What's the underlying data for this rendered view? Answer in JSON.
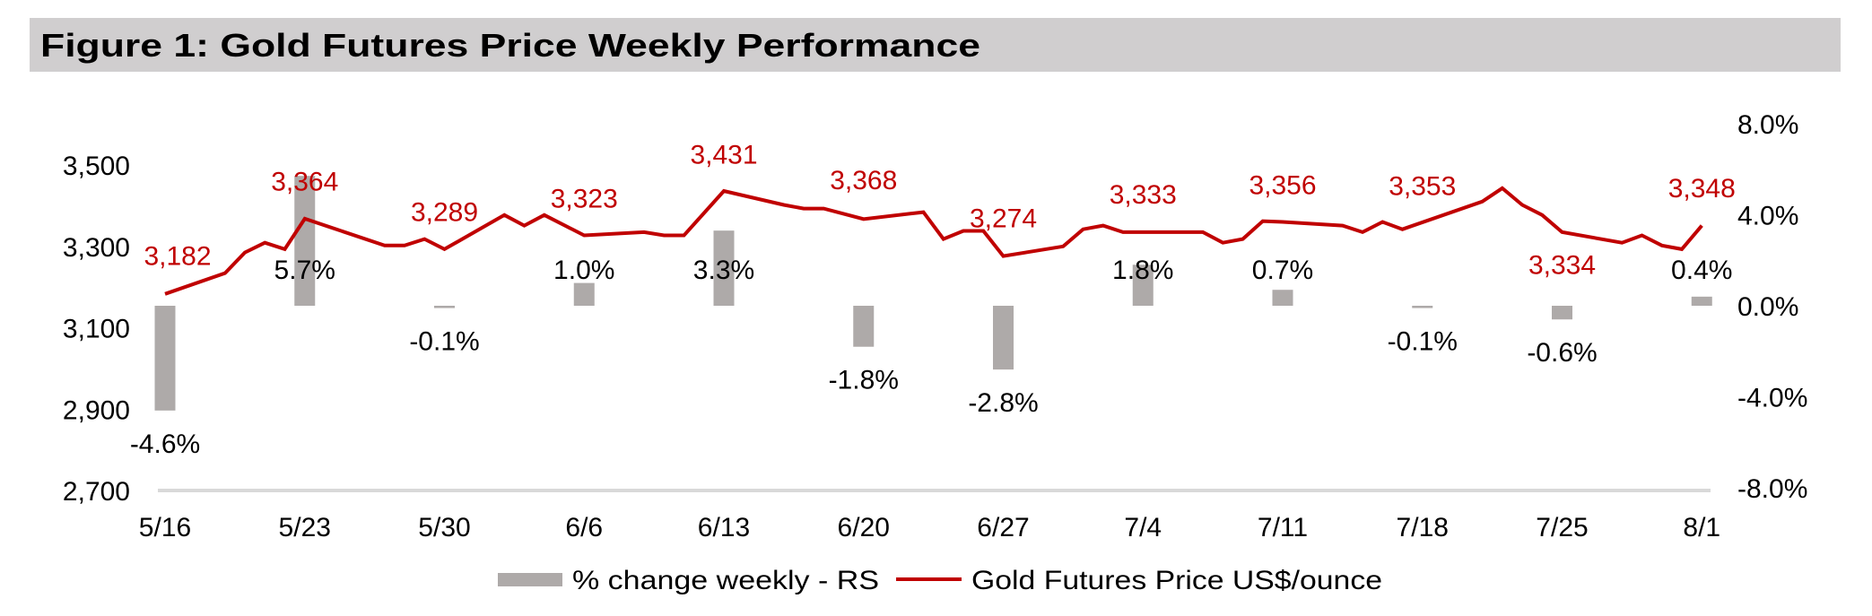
{
  "chart_data": {
    "type": "bar",
    "title": "Figure 1: Gold Futures Price Weekly Performance",
    "xlabel": "",
    "ylabel": "",
    "grid": false,
    "legend": "bottom",
    "categories": [
      "5/16",
      "5/23",
      "5/30",
      "6/6",
      "6/13",
      "6/20",
      "6/27",
      "7/4",
      "7/11",
      "7/18",
      "7/25",
      "8/1"
    ],
    "category_day_offset": [
      0,
      7,
      14,
      21,
      28,
      35,
      42,
      49,
      56,
      63,
      70,
      77
    ],
    "series": [
      {
        "name": "% change weekly - RS",
        "type": "bar",
        "axis": "right",
        "values": [
          -4.6,
          5.7,
          -0.1,
          1.0,
          3.3,
          -1.8,
          -2.8,
          1.8,
          0.7,
          -0.1,
          -0.6,
          0.4
        ],
        "labels": [
          "-4.6%",
          "5.7%",
          "-0.1%",
          "1.0%",
          "3.3%",
          "-1.8%",
          "-2.8%",
          "1.8%",
          "0.7%",
          "-0.1%",
          "-0.6%",
          "0.4%"
        ]
      },
      {
        "name": "Gold Futures Price US$/ounce",
        "type": "line",
        "axis": "left",
        "values": [
          3182,
          3364,
          3289,
          3323,
          3431,
          3368,
          3274,
          3333,
          3356,
          3353,
          3334,
          3348
        ],
        "labels": [
          "3,182",
          "3,364",
          "3,289",
          "3,323",
          "3,431",
          "3,368",
          "3,274",
          "3,333",
          "3,356",
          "3,353",
          "3,334",
          "3,348"
        ],
        "label_pos": [
          "above",
          "above",
          "above",
          "above",
          "above",
          "above",
          "above",
          "above",
          "above",
          "above",
          "below",
          "above"
        ],
        "daily": {
          "day_offset": [
            0,
            3,
            4,
            5,
            6,
            7,
            11,
            12,
            13,
            14,
            17,
            18,
            19,
            21,
            24,
            25,
            26,
            28,
            31,
            32,
            33,
            35,
            38,
            39,
            40,
            41,
            42,
            45,
            46,
            47,
            48,
            52,
            53,
            54,
            55,
            56,
            59,
            60,
            61,
            62,
            66,
            67,
            68,
            69,
            70,
            73,
            74,
            75,
            76,
            77
          ],
          "values": [
            3183,
            3234,
            3285,
            3309,
            3293,
            3368,
            3302,
            3302,
            3318,
            3293,
            3377,
            3351,
            3377,
            3327,
            3335,
            3327,
            3327,
            3436,
            3402,
            3393,
            3393,
            3367,
            3384,
            3318,
            3338,
            3338,
            3276,
            3300,
            3342,
            3351,
            3335,
            3335,
            3309,
            3318,
            3362,
            3360,
            3351,
            3335,
            3360,
            3342,
            3410,
            3443,
            3402,
            3377,
            3335,
            3309,
            3327,
            3302,
            3293,
            3351
          ]
        }
      }
    ],
    "y_left": {
      "range": [
        2700,
        3500
      ],
      "tick_values": [
        3500,
        3300,
        3100,
        2900,
        2700
      ],
      "tick_labels": [
        "3,500",
        "3,300",
        "3,100",
        "2,900",
        "2,700"
      ]
    },
    "y_right": {
      "range": [
        -8,
        8
      ],
      "tick_values": [
        8,
        4,
        0,
        -4,
        -8
      ],
      "tick_labels": [
        "8.0%",
        "4.0%",
        "0.0%",
        "-4.0%",
        "-8.0%"
      ]
    },
    "colors": {
      "bar": "#aeaaa9",
      "line": "#c00000",
      "price_label": "#c00000",
      "banner": "#d0cecf",
      "axis": "#d9d9d9",
      "text": "#000000"
    }
  }
}
